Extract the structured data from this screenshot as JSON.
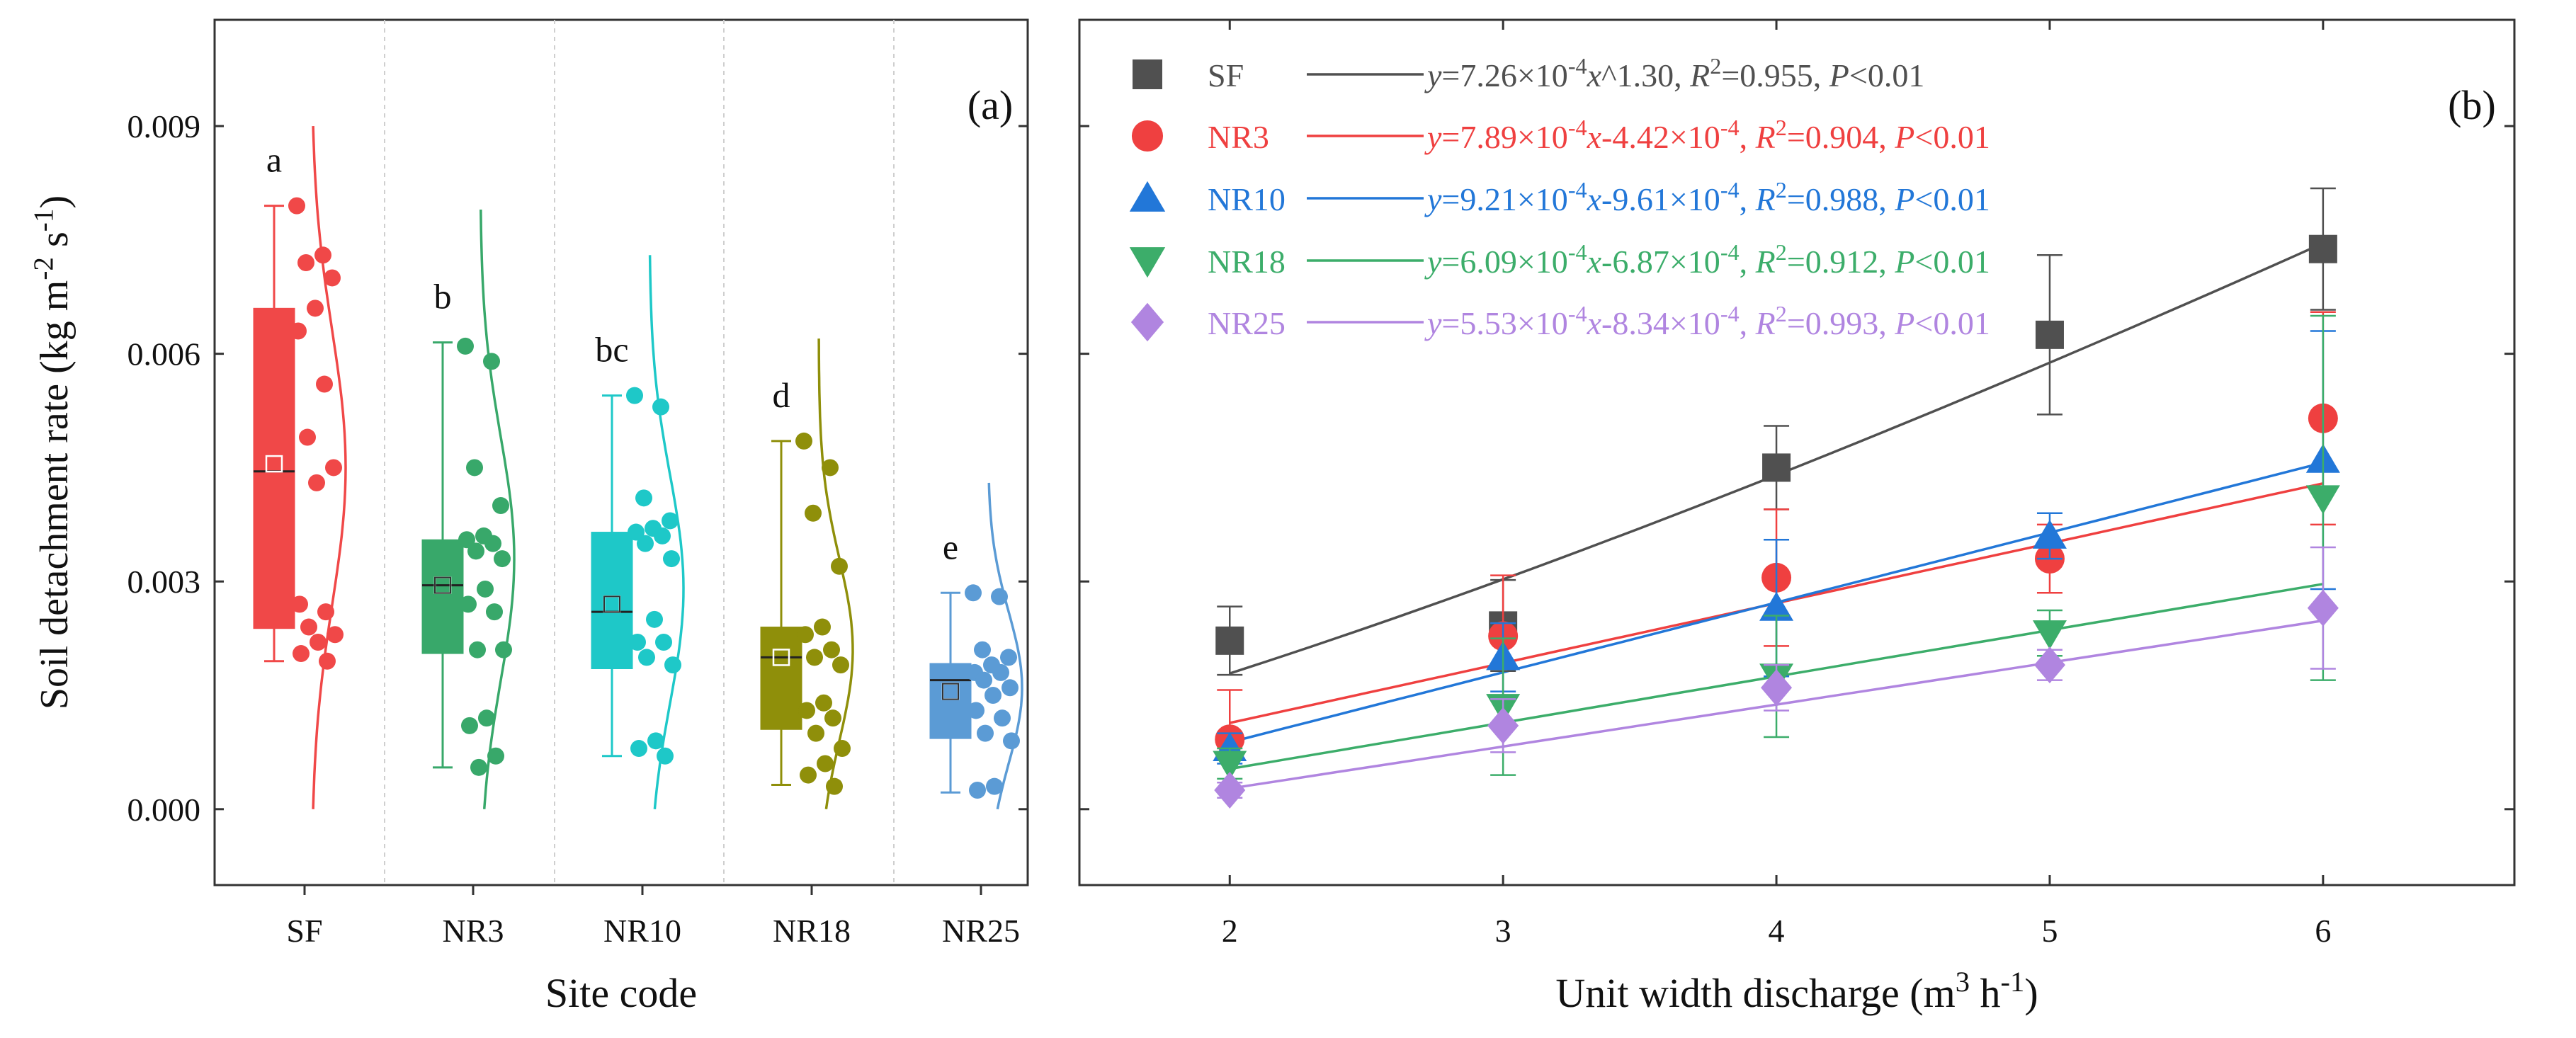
{
  "figure": {
    "colors": {
      "SF": "#f04848",
      "NR3": "#38a86a",
      "NR10": "#1ec8c8",
      "NR18": "#8f8f0a",
      "NR25": "#5b9bd5",
      "b_SF": "#505050",
      "b_NR3": "#ef4040",
      "b_NR10": "#2277d8",
      "b_NR18": "#3cad6a",
      "b_NR25": "#b085e0"
    }
  },
  "chart_data": [
    {
      "panel": "(a)",
      "type": "box",
      "title": "",
      "xlabel": "Site code",
      "ylabel": "Soil detachment rate (kg m-2 s-1)",
      "ylabel_parts": [
        "Soil detachment rate (kg m",
        "-2",
        " s",
        "-1",
        ")"
      ],
      "ylim": [
        -0.001,
        0.0104
      ],
      "yticks": [
        0.0,
        0.003,
        0.006,
        0.009
      ],
      "ytick_labels": [
        "0.000",
        "0.003",
        "0.006",
        "0.009"
      ],
      "categories": [
        "SF",
        "NR3",
        "NR10",
        "NR18",
        "NR25"
      ],
      "boxes": [
        {
          "name": "SF",
          "whisker_low": 0.00195,
          "q1": 0.00238,
          "median": 0.00445,
          "q3": 0.0066,
          "whisker_high": 0.00795,
          "mean": 0.00455,
          "letter": "a",
          "points": [
            0.00795,
            0.0073,
            0.0072,
            0.007,
            0.0066,
            0.0063,
            0.0056,
            0.0049,
            0.0045,
            0.0043,
            0.0027,
            0.0026,
            0.0024,
            0.0023,
            0.0022,
            0.00205,
            0.00195
          ]
        },
        {
          "name": "NR3",
          "whisker_low": 0.00055,
          "q1": 0.00205,
          "median": 0.00295,
          "q3": 0.00355,
          "whisker_high": 0.00615,
          "mean": 0.00295,
          "letter": "b",
          "points": [
            0.0061,
            0.0059,
            0.0045,
            0.004,
            0.0036,
            0.00355,
            0.0035,
            0.0034,
            0.0033,
            0.0029,
            0.0027,
            0.0026,
            0.0021,
            0.0021,
            0.0012,
            0.0011,
            0.0007,
            0.00055
          ]
        },
        {
          "name": "NR10",
          "whisker_low": 0.0007,
          "q1": 0.00185,
          "median": 0.0026,
          "q3": 0.00365,
          "whisker_high": 0.00545,
          "mean": 0.0027,
          "letter": "bc",
          "points": [
            0.00545,
            0.0053,
            0.0041,
            0.0038,
            0.0037,
            0.00365,
            0.0036,
            0.0035,
            0.0033,
            0.0025,
            0.0022,
            0.0022,
            0.002,
            0.0019,
            0.0009,
            0.0008,
            0.0007
          ]
        },
        {
          "name": "NR18",
          "whisker_low": 0.00032,
          "q1": 0.00105,
          "median": 0.002,
          "q3": 0.0024,
          "whisker_high": 0.00485,
          "mean": 0.002,
          "letter": "d",
          "points": [
            0.00485,
            0.0045,
            0.0039,
            0.0032,
            0.0024,
            0.0023,
            0.0021,
            0.002,
            0.0019,
            0.0014,
            0.0013,
            0.0012,
            0.001,
            0.0008,
            0.0006,
            0.00045,
            0.0003
          ]
        },
        {
          "name": "NR25",
          "whisker_low": 0.00022,
          "q1": 0.00093,
          "median": 0.0017,
          "q3": 0.00192,
          "whisker_high": 0.00285,
          "mean": 0.00155,
          "letter": "e",
          "points": [
            0.00285,
            0.0028,
            0.0021,
            0.002,
            0.0019,
            0.0018,
            0.0018,
            0.0017,
            0.0016,
            0.0015,
            0.0013,
            0.0012,
            0.001,
            0.0009,
            0.0003,
            0.00025
          ]
        }
      ],
      "curves": [
        {
          "name": "SF",
          "center": 0.0045,
          "sd": 0.0018,
          "lo": 0.0,
          "hi": 0.009
        },
        {
          "name": "NR3",
          "center": 0.0033,
          "sd": 0.0016,
          "lo": 0.0,
          "hi": 0.0079
        },
        {
          "name": "NR10",
          "center": 0.0029,
          "sd": 0.0015,
          "lo": 0.0,
          "hi": 0.0073
        },
        {
          "name": "NR18",
          "center": 0.0021,
          "sd": 0.0012,
          "lo": 0.0,
          "hi": 0.0062
        },
        {
          "name": "NR25",
          "center": 0.0016,
          "sd": 0.001,
          "lo": 0.0,
          "hi": 0.0043
        }
      ]
    },
    {
      "panel": "(b)",
      "type": "scatter",
      "title": "",
      "xlabel": "Unit width discharge (m3 h-1)",
      "xlabel_parts": [
        "Unit width discharge (m",
        "3",
        " h",
        "-1",
        ")"
      ],
      "ylabel": "",
      "xlim": [
        1.45,
        6.7
      ],
      "ylim": [
        -0.001,
        0.0104
      ],
      "xticks": [
        2,
        3,
        4,
        5,
        6
      ],
      "series": [
        {
          "name": "SF",
          "marker": "square",
          "fit": {
            "kind": "power",
            "a": 0.000726,
            "b": 1.3
          },
          "equation": [
            "y",
            "=7.26×10",
            "-4",
            "x",
            "^1.30, ",
            "R",
            "2",
            "=0.955, ",
            "P",
            "<0.01"
          ],
          "points": [
            {
              "x": 2,
              "y": 0.00222,
              "err": 0.00045
            },
            {
              "x": 3,
              "y": 0.00242,
              "err": 0.0006
            },
            {
              "x": 4,
              "y": 0.0045,
              "err": 0.00055
            },
            {
              "x": 5,
              "y": 0.00625,
              "err": 0.00105
            },
            {
              "x": 6,
              "y": 0.00738,
              "err": 0.0008
            }
          ]
        },
        {
          "name": "NR3",
          "marker": "circle",
          "fit": {
            "kind": "linear",
            "a": 0.000789,
            "b": -0.000442
          },
          "equation": [
            "y",
            "=7.89×10",
            "-4",
            "x",
            "-4.42×10",
            "-4",
            ", ",
            "R",
            "2",
            "=0.904, ",
            "P",
            "<0.01"
          ],
          "points": [
            {
              "x": 2,
              "y": 0.00092,
              "err": 0.00065
            },
            {
              "x": 3,
              "y": 0.00228,
              "err": 0.0008
            },
            {
              "x": 4,
              "y": 0.00305,
              "err": 0.0009
            },
            {
              "x": 5,
              "y": 0.0033,
              "err": 0.00045
            },
            {
              "x": 6,
              "y": 0.00515,
              "err": 0.0014
            }
          ]
        },
        {
          "name": "NR10",
          "marker": "triangle-up",
          "fit": {
            "kind": "linear",
            "a": 0.000921,
            "b": -0.000961
          },
          "equation": [
            "y",
            "=9.21×10",
            "-4",
            "x",
            "-9.61×10",
            "-4",
            ", ",
            "R",
            "2",
            "=0.988, ",
            "P",
            "<0.01"
          ],
          "points": [
            {
              "x": 2,
              "y": 0.0008,
              "err": 0.0002
            },
            {
              "x": 3,
              "y": 0.002,
              "err": 0.00045
            },
            {
              "x": 4,
              "y": 0.00265,
              "err": 0.0009
            },
            {
              "x": 5,
              "y": 0.0036,
              "err": 0.0003
            },
            {
              "x": 6,
              "y": 0.0046,
              "err": 0.0017
            }
          ]
        },
        {
          "name": "NR18",
          "marker": "triangle-down",
          "fit": {
            "kind": "linear",
            "a": 0.000609,
            "b": -0.000687
          },
          "equation": [
            "y",
            "=6.09×10",
            "-4",
            "x",
            "-6.87×10",
            "-4",
            ", ",
            "R",
            "2",
            "=0.912, ",
            "P",
            "<0.01"
          ],
          "points": [
            {
              "x": 2,
              "y": 0.0006,
              "err": 0.0002
            },
            {
              "x": 3,
              "y": 0.00135,
              "err": 0.0009
            },
            {
              "x": 4,
              "y": 0.00175,
              "err": 0.0008
            },
            {
              "x": 5,
              "y": 0.00232,
              "err": 0.0003
            },
            {
              "x": 6,
              "y": 0.0041,
              "err": 0.0024
            }
          ]
        },
        {
          "name": "NR25",
          "marker": "diamond",
          "fit": {
            "kind": "linear",
            "a": 0.000553,
            "b": -0.000834
          },
          "equation": [
            "y",
            "=5.53×10",
            "-4",
            "x",
            "-8.34×10",
            "-4",
            ", ",
            "R",
            "2",
            "=0.993, ",
            "P",
            "<0.01"
          ],
          "points": [
            {
              "x": 2,
              "y": 0.00025,
              "err": 0.0001
            },
            {
              "x": 3,
              "y": 0.0011,
              "err": 0.00035
            },
            {
              "x": 4,
              "y": 0.0016,
              "err": 0.0003
            },
            {
              "x": 5,
              "y": 0.0019,
              "err": 0.0002
            },
            {
              "x": 6,
              "y": 0.00265,
              "err": 0.0008
            }
          ]
        }
      ]
    }
  ]
}
